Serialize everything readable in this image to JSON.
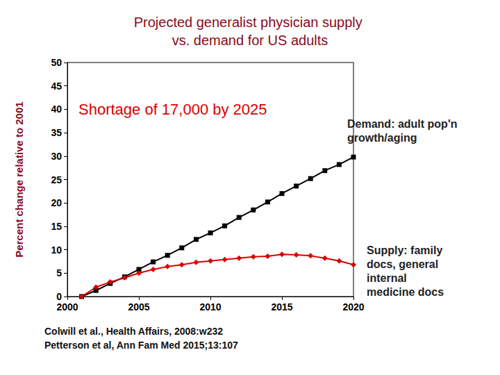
{
  "chart_data": {
    "type": "line",
    "title": "Projected generalist physician supply vs. demand for US adults",
    "y_label": "Percent change relative to 2001",
    "x": [
      2001,
      2002,
      2003,
      2004,
      2005,
      2006,
      2007,
      2008,
      2009,
      2010,
      2011,
      2012,
      2013,
      2014,
      2015,
      2016,
      2017,
      2018,
      2019,
      2020
    ],
    "series": [
      {
        "name": "Demand: adult pop'n growth/aging",
        "color": "#000000",
        "marker": "square",
        "line_style": "solid",
        "values": [
          0,
          1.3,
          2.8,
          4.2,
          5.8,
          7.4,
          8.8,
          10.4,
          12.2,
          13.6,
          15.1,
          16.9,
          18.5,
          20.2,
          22.0,
          23.6,
          25.2,
          26.9,
          28.2,
          29.8
        ]
      },
      {
        "name": "Supply: family docs, general internal medicine docs",
        "color": "#dd0000",
        "marker": "diamond",
        "line_style": "solid",
        "values": [
          0,
          2.0,
          3.1,
          4.0,
          5.0,
          5.8,
          6.4,
          6.8,
          7.3,
          7.6,
          7.9,
          8.2,
          8.5,
          8.6,
          9.0,
          8.9,
          8.7,
          8.2,
          7.6,
          6.8
        ]
      }
    ],
    "xlim": [
      2000,
      2020
    ],
    "xticks": [
      2000,
      2005,
      2010,
      2015,
      2020
    ],
    "ylim": [
      0,
      50
    ],
    "yticks": [
      0,
      5,
      10,
      15,
      20,
      25,
      30,
      35,
      40,
      45,
      50
    ],
    "grid": false,
    "annotations": [
      "Shortage of 17,000 by 2025",
      "Colwill et al., Health Affairs, 2008:w232",
      "Petterson et al, Ann Fam Med 2015;13:107"
    ]
  }
}
